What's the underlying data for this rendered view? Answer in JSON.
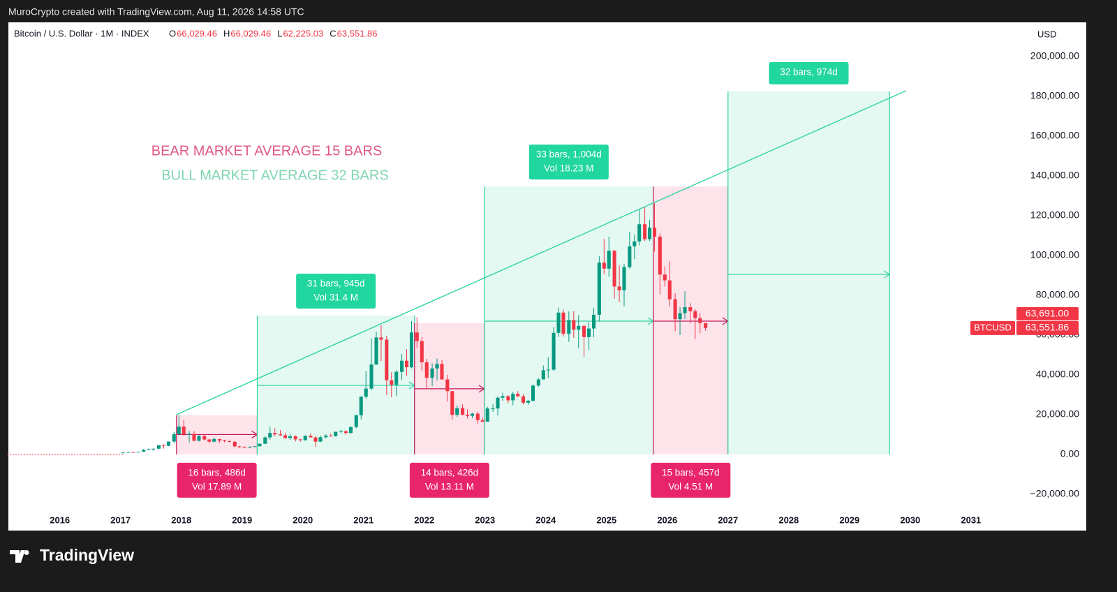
{
  "header": {
    "credit": "MuroCrypto created with TradingView.com, Aug 11, 2026 14:58 UTC",
    "brand": "TradingView"
  },
  "chart_data": {
    "type": "candlestick",
    "symbol": "Bitcoin / U.S. Dollar · 1M · INDEX",
    "legend": [
      {
        "prefix": "O",
        "text": "66,029.46"
      },
      {
        "prefix": "H",
        "text": "66,029.46"
      },
      {
        "prefix": "L",
        "text": "62,225.03"
      },
      {
        "prefix": "C",
        "text": "63,551.86"
      }
    ],
    "currency": "USD",
    "up_color": "#089981",
    "down_color": "#f23645",
    "annotations": [
      {
        "text": "BEAR MARKET AVERAGE 15 BARS",
        "color": "#e05a87"
      },
      {
        "text": "BULL MARKET AVERAGE 32 BARS",
        "color": "#7fd6b0"
      }
    ],
    "xlim": [
      2015.13,
      2031.68
    ],
    "xticks": [
      2016,
      2017,
      2018,
      2019,
      2020,
      2021,
      2022,
      2023,
      2024,
      2025,
      2026,
      2027,
      2028,
      2029,
      2030,
      2031
    ],
    "ylim": [
      -29500,
      217200
    ],
    "yticks": [
      {
        "value": -20000,
        "label": "−20,000.00"
      },
      {
        "value": 0,
        "label": "0.00"
      },
      {
        "value": 20000,
        "label": "20,000.00"
      },
      {
        "value": 40000,
        "label": "40,000.00"
      },
      {
        "value": 60000,
        "label": "60,000.00"
      },
      {
        "value": 80000,
        "label": "80,000.00"
      },
      {
        "value": 100000,
        "label": "100,000.00"
      },
      {
        "value": 120000,
        "label": "120,000.00"
      },
      {
        "value": 140000,
        "label": "140,000.00"
      },
      {
        "value": 160000,
        "label": "160,000.00"
      },
      {
        "value": 180000,
        "label": "180,000.00"
      },
      {
        "value": 200000,
        "label": "200,000.00"
      }
    ],
    "grid": false,
    "x": [
      2017.04,
      2017.13,
      2017.21,
      2017.29,
      2017.38,
      2017.46,
      2017.54,
      2017.63,
      2017.71,
      2017.79,
      2017.88,
      2017.96,
      2018.04,
      2018.13,
      2018.21,
      2018.29,
      2018.38,
      2018.46,
      2018.54,
      2018.63,
      2018.71,
      2018.79,
      2018.88,
      2018.96,
      2019.04,
      2019.13,
      2019.21,
      2019.29,
      2019.38,
      2019.46,
      2019.54,
      2019.63,
      2019.71,
      2019.79,
      2019.88,
      2019.96,
      2020.04,
      2020.13,
      2020.21,
      2020.29,
      2020.38,
      2020.46,
      2020.54,
      2020.63,
      2020.71,
      2020.79,
      2020.88,
      2020.96,
      2021.04,
      2021.13,
      2021.21,
      2021.29,
      2021.38,
      2021.46,
      2021.54,
      2021.63,
      2021.71,
      2021.79,
      2021.88,
      2021.96,
      2022.04,
      2022.13,
      2022.21,
      2022.29,
      2022.38,
      2022.46,
      2022.54,
      2022.63,
      2022.71,
      2022.79,
      2022.88,
      2022.96,
      2023.04,
      2023.13,
      2023.21,
      2023.29,
      2023.38,
      2023.46,
      2023.54,
      2023.63,
      2023.71,
      2023.79,
      2023.88,
      2023.96,
      2024.04,
      2024.13,
      2024.21,
      2024.29,
      2024.38,
      2024.46,
      2024.54,
      2024.63,
      2024.71,
      2024.79,
      2024.88,
      2024.96,
      2025.04,
      2025.13,
      2025.21,
      2025.29,
      2025.38,
      2025.46,
      2025.54,
      2025.63,
      2025.71,
      2025.79,
      2025.88,
      2025.96,
      2026.04,
      2026.13,
      2026.21,
      2026.29,
      2026.38,
      2026.46,
      2026.54,
      2026.63
    ],
    "ohlc": [
      [
        963,
        1150,
        750,
        965
      ],
      [
        965,
        1210,
        920,
        1190
      ],
      [
        1190,
        1350,
        890,
        1080
      ],
      [
        1080,
        1420,
        1060,
        1350
      ],
      [
        1350,
        2760,
        1350,
        2300
      ],
      [
        2300,
        3000,
        2100,
        2480
      ],
      [
        2480,
        2920,
        1830,
        2875
      ],
      [
        2875,
        4750,
        2670,
        4700
      ],
      [
        4700,
        4980,
        2970,
        4340
      ],
      [
        4340,
        6470,
        4130,
        6470
      ],
      [
        6470,
        11400,
        5520,
        10200
      ],
      [
        10200,
        19800,
        9700,
        14000
      ],
      [
        14000,
        17200,
        9400,
        10200
      ],
      [
        10200,
        11800,
        6000,
        10300
      ],
      [
        10300,
        11700,
        6600,
        6900
      ],
      [
        6900,
        9800,
        6500,
        9240
      ],
      [
        9240,
        10000,
        7000,
        7500
      ],
      [
        7500,
        7800,
        5800,
        6400
      ],
      [
        6400,
        8500,
        6100,
        7730
      ],
      [
        7730,
        7760,
        5900,
        7030
      ],
      [
        7030,
        7400,
        6100,
        6630
      ],
      [
        6630,
        7000,
        6200,
        6370
      ],
      [
        6370,
        6600,
        3600,
        4040
      ],
      [
        4040,
        4300,
        3150,
        3740
      ],
      [
        3740,
        4100,
        3350,
        3460
      ],
      [
        3460,
        4200,
        3400,
        3850
      ],
      [
        3850,
        4150,
        3700,
        4100
      ],
      [
        4100,
        5600,
        4050,
        5350
      ],
      [
        5350,
        9100,
        5300,
        8570
      ],
      [
        8570,
        13900,
        7500,
        10800
      ],
      [
        10800,
        13200,
        9100,
        10100
      ],
      [
        10100,
        12300,
        9400,
        9600
      ],
      [
        9600,
        10900,
        7800,
        8300
      ],
      [
        8300,
        10400,
        7300,
        9150
      ],
      [
        9150,
        9500,
        6500,
        7570
      ],
      [
        7570,
        7800,
        6400,
        7200
      ],
      [
        7200,
        9600,
        6850,
        9350
      ],
      [
        9350,
        10500,
        8450,
        8550
      ],
      [
        8550,
        9200,
        3800,
        6420
      ],
      [
        6420,
        9500,
        6200,
        8650
      ],
      [
        8650,
        10100,
        8100,
        9460
      ],
      [
        9460,
        10400,
        8900,
        9140
      ],
      [
        9140,
        11450,
        8950,
        11350
      ],
      [
        11350,
        12500,
        10500,
        11650
      ],
      [
        11650,
        12100,
        9850,
        10780
      ],
      [
        10780,
        14100,
        10400,
        13800
      ],
      [
        13800,
        19900,
        13200,
        19700
      ],
      [
        19700,
        29300,
        17600,
        29000
      ],
      [
        29000,
        42000,
        28100,
        33100
      ],
      [
        33100,
        58400,
        32300,
        45200
      ],
      [
        45200,
        61800,
        45000,
        58800
      ],
      [
        58800,
        64900,
        47000,
        57700
      ],
      [
        57700,
        59600,
        30000,
        37300
      ],
      [
        37300,
        41300,
        28800,
        35000
      ],
      [
        35000,
        42400,
        29300,
        41500
      ],
      [
        41500,
        50500,
        37400,
        47100
      ],
      [
        47100,
        52900,
        39600,
        43800
      ],
      [
        43800,
        67000,
        43300,
        61300
      ],
      [
        61300,
        69000,
        53300,
        57000
      ],
      [
        57000,
        59000,
        42000,
        46300
      ],
      [
        46300,
        48000,
        32900,
        38500
      ],
      [
        38500,
        45800,
        34300,
        43200
      ],
      [
        43200,
        48200,
        37200,
        45500
      ],
      [
        45500,
        47400,
        37600,
        37700
      ],
      [
        37700,
        40000,
        26700,
        31800
      ],
      [
        31800,
        31900,
        17600,
        19900
      ],
      [
        19900,
        24700,
        18800,
        23300
      ],
      [
        23300,
        25200,
        19600,
        20000
      ],
      [
        20000,
        22700,
        18100,
        19400
      ],
      [
        19400,
        20900,
        18200,
        20500
      ],
      [
        20500,
        21400,
        15500,
        17200
      ],
      [
        17200,
        18400,
        16300,
        16500
      ],
      [
        16500,
        23900,
        16500,
        23100
      ],
      [
        23100,
        25200,
        21400,
        23100
      ],
      [
        23100,
        29200,
        19600,
        28500
      ],
      [
        28500,
        31000,
        26900,
        29300
      ],
      [
        29300,
        29800,
        25800,
        27200
      ],
      [
        27200,
        31400,
        24800,
        30500
      ],
      [
        30500,
        31800,
        28900,
        29200
      ],
      [
        29200,
        30200,
        25200,
        26000
      ],
      [
        26000,
        27500,
        24900,
        27000
      ],
      [
        27000,
        35200,
        26600,
        34600
      ],
      [
        34600,
        38400,
        34100,
        37700
      ],
      [
        37700,
        44700,
        37700,
        42300
      ],
      [
        42300,
        48900,
        38500,
        42600
      ],
      [
        42600,
        64000,
        41900,
        61100
      ],
      [
        61100,
        73800,
        59000,
        71300
      ],
      [
        71300,
        72800,
        59200,
        60600
      ],
      [
        60600,
        71900,
        56600,
        67500
      ],
      [
        67500,
        72000,
        58600,
        62700
      ],
      [
        62700,
        70000,
        53500,
        64600
      ],
      [
        64600,
        65100,
        49000,
        59000
      ],
      [
        59000,
        66500,
        52600,
        63300
      ],
      [
        63300,
        73600,
        58900,
        70200
      ],
      [
        70200,
        99600,
        66800,
        96400
      ],
      [
        96400,
        108300,
        90500,
        93400
      ],
      [
        93400,
        109400,
        89300,
        102400
      ],
      [
        102400,
        102800,
        78300,
        84400
      ],
      [
        84400,
        95000,
        76600,
        82500
      ],
      [
        82500,
        95800,
        74500,
        94200
      ],
      [
        94200,
        111900,
        93400,
        104600
      ],
      [
        104600,
        110600,
        98200,
        107100
      ],
      [
        107100,
        123200,
        105100,
        115700
      ],
      [
        115700,
        124500,
        107300,
        108200
      ],
      [
        108200,
        117900,
        107300,
        114000
      ],
      [
        114000,
        126200,
        102000,
        109500
      ],
      [
        109500,
        111200,
        80500,
        90400
      ],
      [
        90400,
        94600,
        84500,
        87500
      ],
      [
        87500,
        97000,
        74500,
        78000
      ],
      [
        78000,
        81000,
        62000,
        68000
      ],
      [
        68000,
        74000,
        60000,
        71000
      ],
      [
        71000,
        82000,
        68000,
        74000
      ],
      [
        74000,
        76000,
        66000,
        72000
      ],
      [
        72000,
        73000,
        58000,
        68500
      ],
      [
        68500,
        71000,
        61000,
        66029.46
      ],
      [
        66029.46,
        66029.46,
        62225.03,
        63551.86
      ]
    ],
    "ranges": [
      {
        "x": [
          2017.92,
          2019.25
        ],
        "top": 19650,
        "arrow": 10000,
        "kind": "bear",
        "side": "below",
        "labels": [
          "16 bars, 486d",
          "Vol 17.89 M"
        ]
      },
      {
        "x": [
          2019.25,
          2021.84
        ],
        "top": 69800,
        "arrow": 34700,
        "kind": "bull",
        "side": "above",
        "labels": [
          "31 bars, 945d",
          "Vol 31.4 M"
        ]
      },
      {
        "x": [
          2021.84,
          2022.99
        ],
        "top": 66000,
        "arrow": 33000,
        "kind": "bear",
        "side": "below",
        "labels": [
          "14 bars, 426d",
          "Vol 13.11 M"
        ]
      },
      {
        "x": [
          2022.99,
          2025.77
        ],
        "top": 134700,
        "arrow": 67000,
        "kind": "bull",
        "side": "above",
        "labels": [
          "33 bars, 1,004d",
          "Vol 18.23 M"
        ]
      },
      {
        "x": [
          2025.77,
          2027.0
        ],
        "top": 134700,
        "arrow": 67000,
        "kind": "bear",
        "side": "below",
        "labels": [
          "15 bars, 457d",
          "Vol 4.51 M"
        ]
      },
      {
        "x": [
          2027.0,
          2029.66
        ],
        "top": 182500,
        "arrow": 90500,
        "kind": "bull",
        "side": "above",
        "labels": [
          "32 bars, 974d"
        ]
      }
    ],
    "range_colors": {
      "bear": {
        "fill": "#fde3ea",
        "line": "#c2185b",
        "label": "#e8256a"
      },
      "bull": {
        "fill": "#e3f9f1",
        "line": "#2fd4a3",
        "label": "#22d6a0"
      }
    },
    "trendline": {
      "x": [
        2017.92,
        2029.93
      ],
      "y": [
        20000,
        182800
      ],
      "color": "#2fd4a3"
    },
    "price_labels": {
      "symbol": "BTCUSD",
      "color": "#f23645",
      "values": [
        {
          "value": 63691,
          "label": "63,691.00"
        },
        {
          "value": 63551.86,
          "label": "63,551.86"
        }
      ]
    }
  }
}
